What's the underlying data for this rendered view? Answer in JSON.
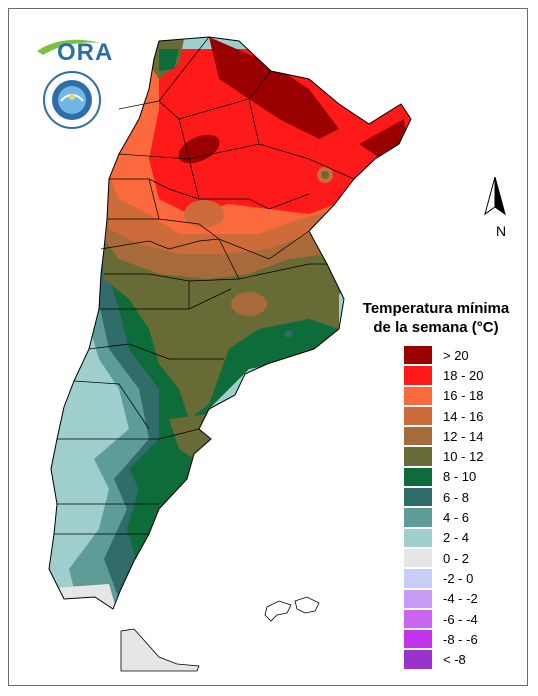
{
  "logo": {
    "text": "ORA",
    "swoosh_color": "#7cc242",
    "text_color": "#2e6ea8"
  },
  "seal": {
    "icon": "smn-seal-icon"
  },
  "north_arrow": {
    "letter": "N",
    "icon": "north-arrow-icon"
  },
  "legend": {
    "title_line1": "Temperatura mínima",
    "title_line2": "de la semana (°C)",
    "items": [
      {
        "label": "> 20",
        "color": "#9a0000"
      },
      {
        "label": "18 - 20",
        "color": "#ff1a1a"
      },
      {
        "label": "16 - 18",
        "color": "#fb6a3c"
      },
      {
        "label": "14 - 16",
        "color": "#cd6b3a"
      },
      {
        "label": "12 - 14",
        "color": "#a76a3a"
      },
      {
        "label": "10 - 12",
        "color": "#686b36"
      },
      {
        "label": "8 - 10",
        "color": "#0e6b3a"
      },
      {
        "label": "6 - 8",
        "color": "#2f6c6a"
      },
      {
        "label": "4 - 6",
        "color": "#5e9c9a"
      },
      {
        "label": "2 - 4",
        "color": "#9ecfcc"
      },
      {
        "label": "0 - 2",
        "color": "#e6e6e6"
      },
      {
        "label": "-2 - 0",
        "color": "#c9cdf5"
      },
      {
        "label": "-4 - -2",
        "color": "#c69af5"
      },
      {
        "label": "-6 - -4",
        "color": "#cc66f2"
      },
      {
        "label": "-8 - -6",
        "color": "#c233ee"
      },
      {
        "label": "< -8",
        "color": "#9933cc"
      }
    ]
  }
}
